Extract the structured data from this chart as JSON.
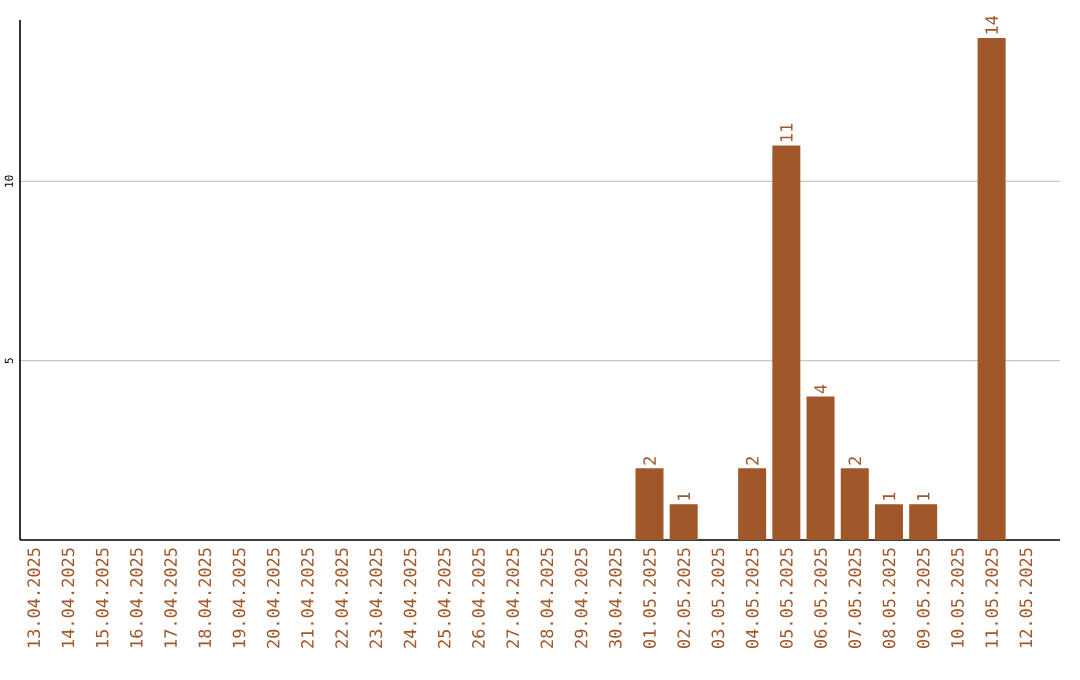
{
  "chart_data": {
    "type": "bar",
    "categories": [
      "13.04.2025",
      "14.04.2025",
      "15.04.2025",
      "16.04.2025",
      "17.04.2025",
      "18.04.2025",
      "19.04.2025",
      "20.04.2025",
      "21.04.2025",
      "22.04.2025",
      "23.04.2025",
      "24.04.2025",
      "25.04.2025",
      "26.04.2025",
      "27.04.2025",
      "28.04.2025",
      "29.04.2025",
      "30.04.2025",
      "01.05.2025",
      "02.05.2025",
      "03.05.2025",
      "04.05.2025",
      "05.05.2025",
      "06.05.2025",
      "07.05.2025",
      "08.05.2025",
      "09.05.2025",
      "10.05.2025",
      "11.05.2025",
      "12.05.2025"
    ],
    "values": [
      0,
      0,
      0,
      0,
      0,
      0,
      0,
      0,
      0,
      0,
      0,
      0,
      0,
      0,
      0,
      0,
      0,
      0,
      2,
      1,
      0,
      2,
      11,
      4,
      2,
      1,
      1,
      0,
      14,
      0
    ],
    "value_labels": [
      null,
      null,
      null,
      null,
      null,
      null,
      null,
      null,
      null,
      null,
      null,
      null,
      null,
      null,
      null,
      null,
      null,
      null,
      "2",
      "1",
      null,
      "2",
      "11",
      "4",
      "2",
      "1",
      "1",
      null,
      "14",
      null
    ],
    "color": "#a0572a",
    "ylim": [
      0,
      14.5
    ],
    "yticks": [
      5,
      10
    ],
    "grid": "y"
  }
}
